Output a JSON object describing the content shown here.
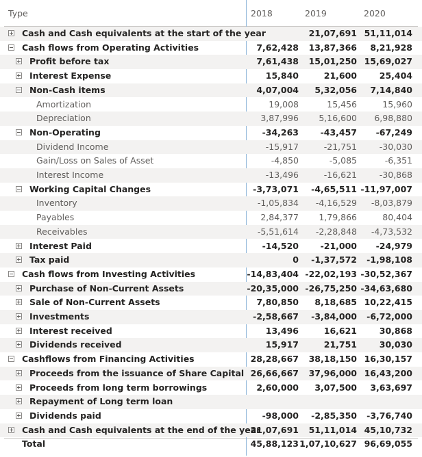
{
  "header": {
    "type_label": "Type",
    "years": [
      "2018",
      "2019",
      "2020"
    ]
  },
  "rows": [
    {
      "label": "Cash and Cash equivalents at the start of the year",
      "v": [
        "",
        "21,07,691",
        "51,11,014"
      ]
    },
    {
      "label": "Cash flows from Operating Activities",
      "v": [
        "7,62,428",
        "13,87,366",
        "8,21,928"
      ]
    },
    {
      "label": "Profit before tax",
      "v": [
        "7,61,438",
        "15,01,250",
        "15,69,027"
      ]
    },
    {
      "label": "Interest Expense",
      "v": [
        "15,840",
        "21,600",
        "25,404"
      ]
    },
    {
      "label": "Non-Cash items",
      "v": [
        "4,07,004",
        "5,32,056",
        "7,14,840"
      ]
    },
    {
      "label": "Amortization",
      "v": [
        "19,008",
        "15,456",
        "15,960"
      ]
    },
    {
      "label": "Depreciation",
      "v": [
        "3,87,996",
        "5,16,600",
        "6,98,880"
      ]
    },
    {
      "label": "Non-Operating",
      "v": [
        "-34,263",
        "-43,457",
        "-67,249"
      ]
    },
    {
      "label": "Dividend Income",
      "v": [
        "-15,917",
        "-21,751",
        "-30,030"
      ]
    },
    {
      "label": "Gain/Loss on Sales of Asset",
      "v": [
        "-4,850",
        "-5,085",
        "-6,351"
      ]
    },
    {
      "label": "Interest Income",
      "v": [
        "-13,496",
        "-16,621",
        "-30,868"
      ]
    },
    {
      "label": "Working Capital Changes",
      "v": [
        "-3,73,071",
        "-4,65,511",
        "-11,97,007"
      ]
    },
    {
      "label": "Inventory",
      "v": [
        "-1,05,834",
        "-4,16,529",
        "-8,03,879"
      ]
    },
    {
      "label": "Payables",
      "v": [
        "2,84,377",
        "1,79,866",
        "80,404"
      ]
    },
    {
      "label": "Receivables",
      "v": [
        "-5,51,614",
        "-2,28,848",
        "-4,73,532"
      ]
    },
    {
      "label": "Interest Paid",
      "v": [
        "-14,520",
        "-21,000",
        "-24,979"
      ]
    },
    {
      "label": "Tax paid",
      "v": [
        "0",
        "-1,37,572",
        "-1,98,108"
      ]
    },
    {
      "label": "Cash flows from Investing Activities",
      "v": [
        "-14,83,404",
        "-22,02,193",
        "-30,52,367"
      ]
    },
    {
      "label": "Purchase of Non-Current Assets",
      "v": [
        "-20,35,000",
        "-26,75,250",
        "-34,63,680"
      ]
    },
    {
      "label": "Sale of Non-Current Assets",
      "v": [
        "7,80,850",
        "8,18,685",
        "10,22,415"
      ]
    },
    {
      "label": "Investments",
      "v": [
        "-2,58,667",
        "-3,84,000",
        "-6,72,000"
      ]
    },
    {
      "label": "Interest received",
      "v": [
        "13,496",
        "16,621",
        "30,868"
      ]
    },
    {
      "label": "Dividends received",
      "v": [
        "15,917",
        "21,751",
        "30,030"
      ]
    },
    {
      "label": "Cashflows from Financing Activities",
      "v": [
        "28,28,667",
        "38,18,150",
        "16,30,157"
      ]
    },
    {
      "label": "Proceeds from the issuance of Share Capital",
      "v": [
        "26,66,667",
        "37,96,000",
        "16,43,200"
      ]
    },
    {
      "label": "Proceeds from long term borrowings",
      "v": [
        "2,60,000",
        "3,07,500",
        "3,63,697"
      ]
    },
    {
      "label": "Repayment of Long term loan",
      "v": [
        "",
        "",
        ""
      ]
    },
    {
      "label": "Dividends paid",
      "v": [
        "-98,000",
        "-2,85,350",
        "-3,76,740"
      ]
    },
    {
      "label": "Cash and Cash equivalents at the end of the year",
      "v": [
        "21,07,691",
        "51,11,014",
        "45,10,732"
      ]
    },
    {
      "label": "Total",
      "v": [
        "45,88,123",
        "1,07,10,627",
        "96,69,055"
      ]
    }
  ]
}
